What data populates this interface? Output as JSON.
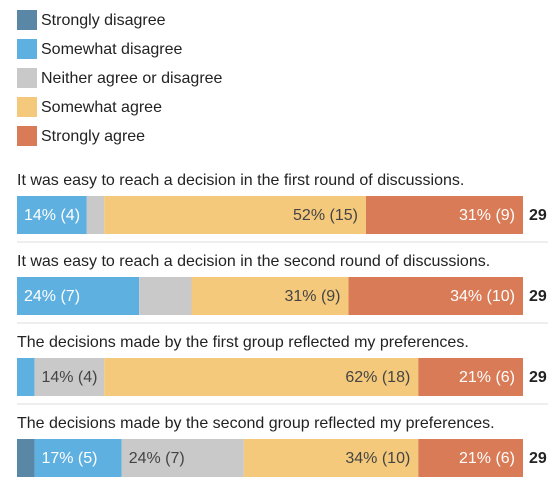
{
  "chart_data": {
    "type": "stacked-bar-horizontal",
    "categories": [
      "It was easy to reach a decision in the first round of discussions.",
      "It was easy to reach a decision in the second round of discussions.",
      "The decisions made by the first group reflected my preferences.",
      "The decisions made by the second group reflected my preferences."
    ],
    "series": [
      {
        "name": "Strongly disagree",
        "color": "#5b87a6",
        "values": [
          0,
          0,
          0,
          1
        ],
        "value_labels": [
          null,
          null,
          null,
          null
        ]
      },
      {
        "name": "Somewhat disagree",
        "color": "#5eb0e0",
        "values": [
          4,
          7,
          1,
          5
        ],
        "value_labels": [
          "14% (4)",
          "24% (7)",
          null,
          "17% (5)"
        ]
      },
      {
        "name": "Neither agree or disagree",
        "color": "#c9c9c9",
        "values": [
          1,
          3,
          4,
          7
        ],
        "value_labels": [
          null,
          null,
          "14% (4)",
          "24% (7)"
        ]
      },
      {
        "name": "Somewhat agree",
        "color": "#f5c97c",
        "values": [
          15,
          9,
          18,
          10
        ],
        "value_labels": [
          "52% (15)",
          "31% (9)",
          "62% (18)",
          "34% (10)"
        ]
      },
      {
        "name": "Strongly agree",
        "color": "#d97b56",
        "values": [
          9,
          10,
          6,
          6
        ],
        "value_labels": [
          "31% (9)",
          "34% (10)",
          "21% (6)",
          "21% (6)"
        ]
      }
    ],
    "totals": [
      29,
      29,
      29,
      29
    ]
  }
}
